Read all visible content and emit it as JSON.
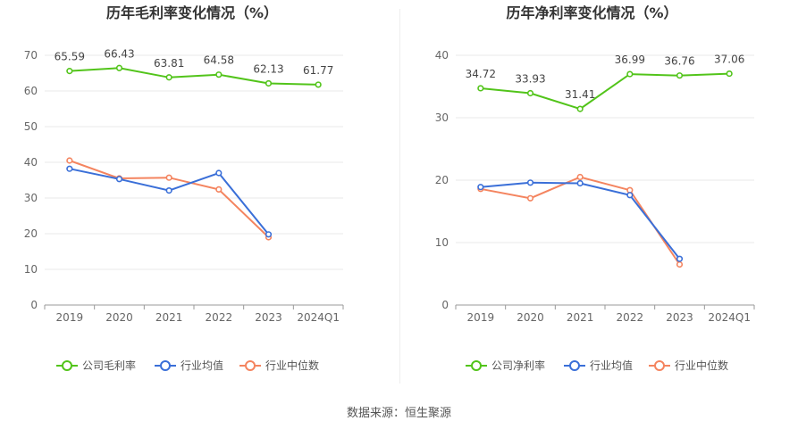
{
  "colors": {
    "main": "#52c41a",
    "avg": "#3a6fd8",
    "median": "#f4845f",
    "axis": "#666666",
    "grid": "#e8e8e8"
  },
  "chart_data": [
    {
      "type": "line",
      "title": "历年毛利率变化情况（%）",
      "categories": [
        "2019",
        "2020",
        "2021",
        "2022",
        "2023",
        "2024Q1"
      ],
      "ylim": [
        0,
        70
      ],
      "yticks": [
        0,
        10,
        20,
        30,
        40,
        50,
        60,
        70
      ],
      "series": [
        {
          "name": "公司毛利率",
          "key": "main",
          "values": [
            65.59,
            66.43,
            63.81,
            64.58,
            62.13,
            61.77
          ],
          "labels": [
            "65.59",
            "66.43",
            "63.81",
            "64.58",
            "62.13",
            "61.77"
          ]
        },
        {
          "name": "行业均值",
          "key": "avg",
          "values": [
            38.2,
            35.3,
            32.1,
            37.0,
            19.8,
            null
          ]
        },
        {
          "name": "行业中位数",
          "key": "median",
          "values": [
            40.5,
            35.5,
            35.7,
            32.4,
            19.0,
            null
          ]
        }
      ],
      "legend": [
        "公司毛利率",
        "行业均值",
        "行业中位数"
      ]
    },
    {
      "type": "line",
      "title": "历年净利率变化情况（%）",
      "categories": [
        "2019",
        "2020",
        "2021",
        "2022",
        "2023",
        "2024Q1"
      ],
      "ylim": [
        0,
        40
      ],
      "yticks": [
        0,
        10,
        20,
        30,
        40
      ],
      "series": [
        {
          "name": "公司净利率",
          "key": "main",
          "values": [
            34.72,
            33.93,
            31.41,
            36.99,
            36.76,
            37.06
          ],
          "labels": [
            "34.72",
            "33.93",
            "31.41",
            "36.99",
            "36.76",
            "37.06"
          ]
        },
        {
          "name": "行业均值",
          "key": "avg",
          "values": [
            18.9,
            19.6,
            19.5,
            17.6,
            7.4,
            null
          ]
        },
        {
          "name": "行业中位数",
          "key": "median",
          "values": [
            18.6,
            17.1,
            20.5,
            18.4,
            6.5,
            null
          ]
        }
      ],
      "legend": [
        "公司净利率",
        "行业均值",
        "行业中位数"
      ]
    }
  ],
  "footer": {
    "source": "数据来源：恒生聚源"
  }
}
